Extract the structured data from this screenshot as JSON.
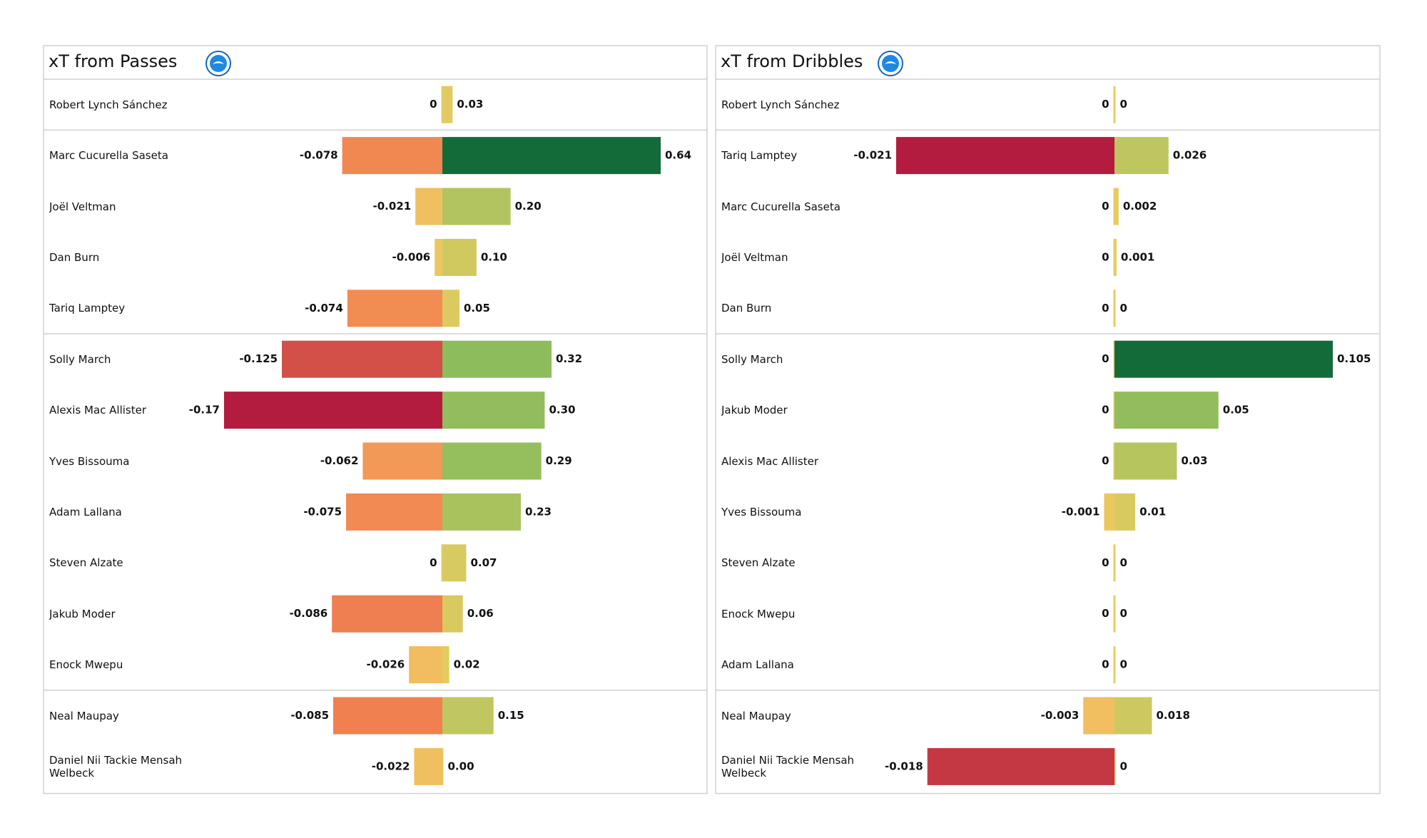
{
  "chart_data": [
    {
      "type": "diverging-bar",
      "title": "xT from Passes",
      "colormap": "RdYlGn",
      "categories": [
        "Robert Lynch Sánchez",
        "Marc Cucurella Saseta",
        "Joël Veltman",
        "Dan Burn",
        "Tariq Lamptey",
        "Solly March",
        "Alexis Mac Allister",
        "Yves Bissouma",
        "Adam Lallana",
        "Steven Alzate",
        "Jakub Moder",
        "Enock Mwepu",
        "Neal Maupay",
        "Daniel Nii Tackie Mensah Welbeck"
      ],
      "xlim": [
        -0.17,
        0.64
      ],
      "series": [
        {
          "values": [
            0,
            -0.078,
            -0.021,
            -0.006,
            -0.074,
            -0.125,
            -0.17,
            -0.062,
            -0.075,
            0,
            -0.086,
            -0.026,
            -0.085,
            -0.022
          ]
        },
        {
          "values": [
            0.03,
            0.64,
            0.2,
            0.1,
            0.05,
            0.32,
            0.3,
            0.29,
            0.23,
            0.07,
            0.06,
            0.02,
            0.15,
            0
          ],
          "value_labels": [
            "0.03",
            "0.64",
            "0.20",
            "0.10",
            "0.05",
            "0.32",
            "0.30",
            "0.29",
            "0.23",
            "0.07",
            "0.06",
            "0.02",
            "0.15",
            "0.00"
          ]
        }
      ]
    },
    {
      "type": "diverging-bar",
      "title": "xT from Dribbles",
      "colormap": "RdYlGn",
      "categories": [
        "Robert Lynch Sánchez",
        "Tariq Lamptey",
        "Marc Cucurella Saseta",
        "Joël Veltman",
        "Dan Burn",
        "Solly March",
        "Jakub Moder",
        "Alexis Mac Allister",
        "Yves Bissouma",
        "Steven Alzate",
        "Enock Mwepu",
        "Adam Lallana",
        "Neal Maupay",
        "Daniel Nii Tackie Mensah Welbeck"
      ],
      "xlim": [
        -0.021,
        0.105
      ],
      "series": [
        {
          "values": [
            0,
            -0.021,
            0,
            0,
            0,
            0,
            0,
            0,
            -0.001,
            0,
            0,
            0,
            -0.003,
            -0.018
          ]
        },
        {
          "values": [
            0,
            0.026,
            0.002,
            0.001,
            0,
            0.105,
            0.05,
            0.03,
            0.01,
            0,
            0,
            0,
            0.018,
            0
          ]
        }
      ]
    }
  ]
}
